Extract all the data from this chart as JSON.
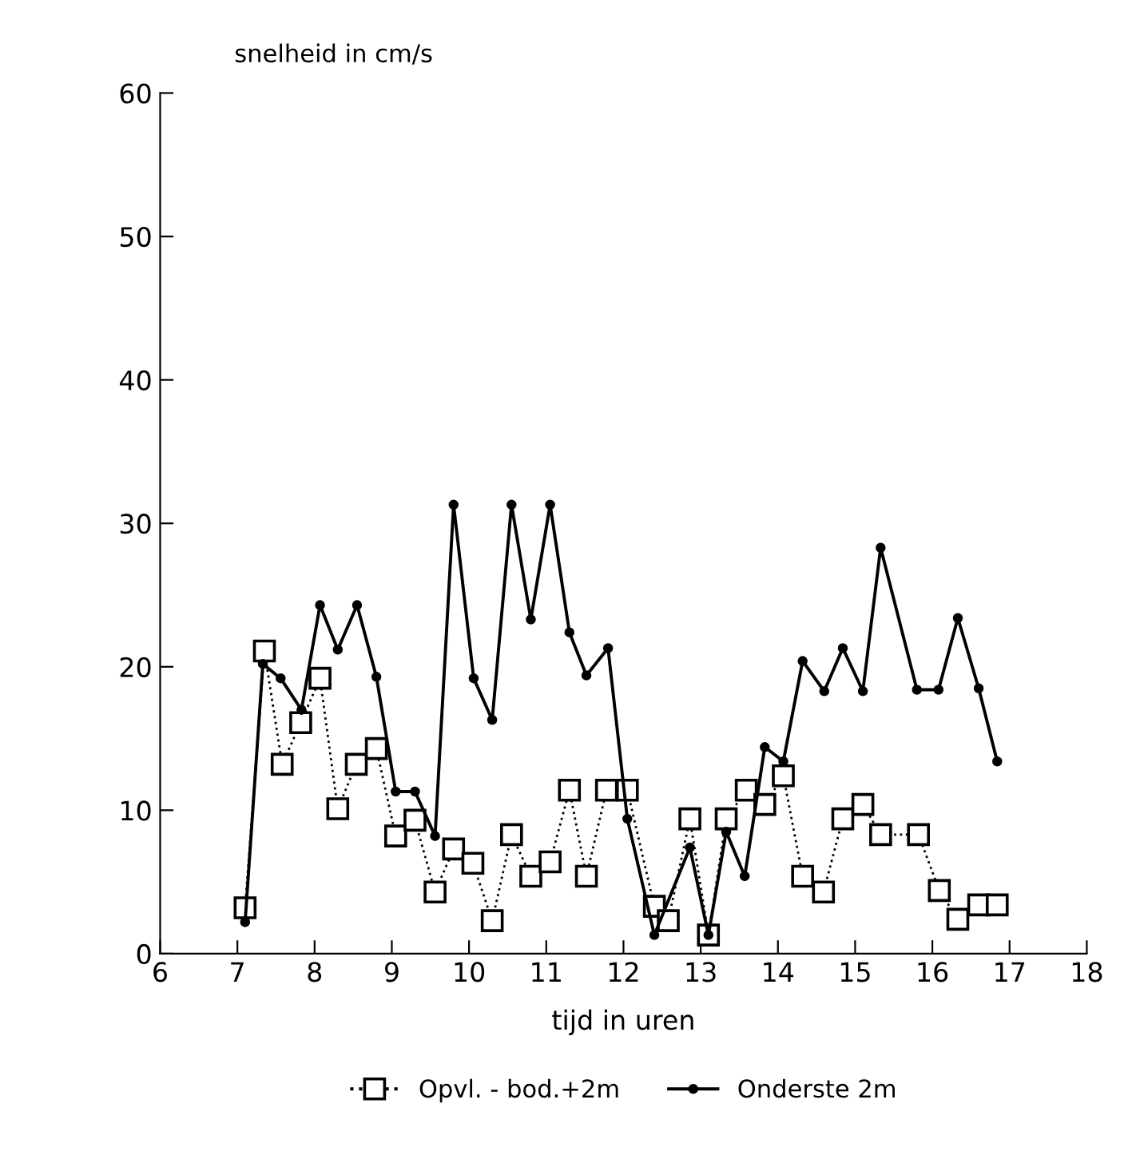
{
  "chart_data": {
    "type": "line",
    "xlabel": "tijd in uren",
    "ylabel": "snelheid in cm/s",
    "xlim": [
      6,
      18
    ],
    "xticks": [
      6,
      7,
      8,
      9,
      10,
      11,
      12,
      13,
      14,
      15,
      16,
      17,
      18
    ],
    "ylim": [
      0,
      60
    ],
    "yticks": [
      0,
      10,
      20,
      30,
      40,
      50,
      60
    ],
    "grid": false,
    "legend": "bottom",
    "series": [
      {
        "name": "Opvl. - bod.+2m",
        "color": "#000000",
        "marker": "square",
        "line_style": "dotted",
        "x": [
          7.1,
          7.35,
          7.58,
          7.82,
          8.07,
          8.3,
          8.54,
          8.8,
          9.05,
          9.3,
          9.56,
          9.8,
          10.05,
          10.3,
          10.55,
          10.8,
          11.05,
          11.3,
          11.52,
          11.78,
          12.05,
          12.4,
          12.58,
          12.86,
          13.1,
          13.33,
          13.59,
          13.83,
          14.07,
          14.32,
          14.59,
          14.84,
          15.1,
          15.33,
          15.82,
          16.09,
          16.33,
          16.6,
          16.84
        ],
        "values": [
          3.2,
          21.1,
          13.2,
          16.1,
          19.2,
          10.1,
          13.2,
          14.3,
          8.2,
          9.3,
          4.3,
          7.3,
          6.3,
          2.3,
          8.3,
          5.4,
          6.4,
          11.4,
          5.4,
          11.4,
          11.4,
          3.3,
          2.3,
          9.4,
          1.3,
          9.4,
          11.4,
          10.4,
          12.4,
          5.4,
          4.3,
          9.4,
          10.4,
          8.3,
          8.3,
          4.4,
          2.4,
          3.4,
          3.4
        ]
      },
      {
        "name": "Onderste 2m",
        "color": "#000000",
        "marker": "circle",
        "line_style": "solid",
        "x": [
          7.1,
          7.33,
          7.56,
          7.83,
          8.07,
          8.3,
          8.55,
          8.8,
          9.05,
          9.3,
          9.56,
          9.8,
          10.06,
          10.3,
          10.55,
          10.8,
          11.05,
          11.3,
          11.52,
          11.8,
          12.05,
          12.4,
          12.86,
          13.1,
          13.33,
          13.57,
          13.83,
          14.07,
          14.32,
          14.6,
          14.84,
          15.1,
          15.33,
          15.8,
          16.08,
          16.33,
          16.6,
          16.84
        ],
        "values": [
          2.2,
          20.2,
          19.2,
          17,
          24.3,
          21.2,
          24.3,
          19.3,
          11.3,
          11.3,
          8.2,
          31.3,
          19.2,
          16.3,
          31.3,
          23.3,
          31.3,
          22.4,
          19.4,
          21.3,
          9.4,
          1.3,
          7.4,
          1.3,
          8.5,
          5.4,
          14.4,
          13.4,
          20.4,
          18.3,
          21.3,
          18.3,
          28.3,
          18.4,
          18.4,
          23.4,
          18.5,
          13.4
        ]
      }
    ]
  }
}
